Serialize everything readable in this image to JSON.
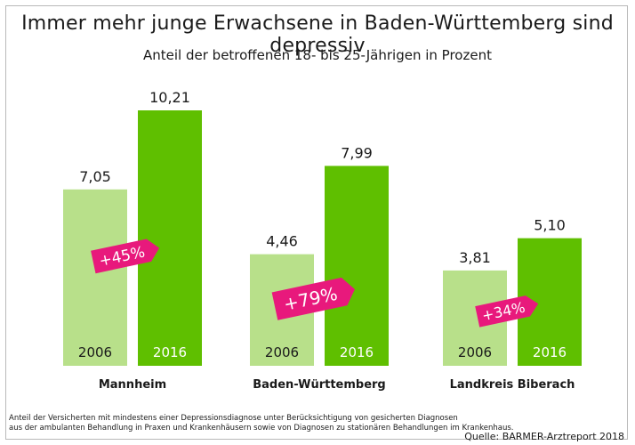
{
  "chart_data": {
    "type": "bar",
    "title": "Immer mehr junge Erwachsene in Baden-Württemberg sind depressiv",
    "subtitle": "Anteil der betroffenen 18- bis 25-Jährigen in Prozent",
    "categories": [
      "Mannheim",
      "Baden-Württemberg",
      "Landkreis Biberach"
    ],
    "series": [
      {
        "name": "2006",
        "values": [
          7.05,
          4.46,
          3.81
        ],
        "labels": [
          "7,05",
          "4,46",
          "3,81"
        ],
        "color": "#b8e08a"
      },
      {
        "name": "2016",
        "values": [
          10.21,
          7.99,
          5.1
        ],
        "labels": [
          "10,21",
          "7,99",
          "5,10"
        ],
        "color": "#5fbf00"
      }
    ],
    "changes": [
      "+45%",
      "+79%",
      "+34%"
    ],
    "change_color": "#e8197c",
    "ylim": [
      0,
      11.5
    ],
    "grid": false,
    "legend": "none"
  },
  "footnote": {
    "line1": "Anteil der Versicherten mit mindestens einer Depressionsdiagnose unter Berücksichtigung von gesicherten Diagnosen",
    "line2": "aus der ambulanten Behandlung in Praxen und Krankenhäusern sowie von Diagnosen zu stationären Behandlungen im Krankenhaus."
  },
  "source": "Quelle: BARMER-Arztreport 2018"
}
